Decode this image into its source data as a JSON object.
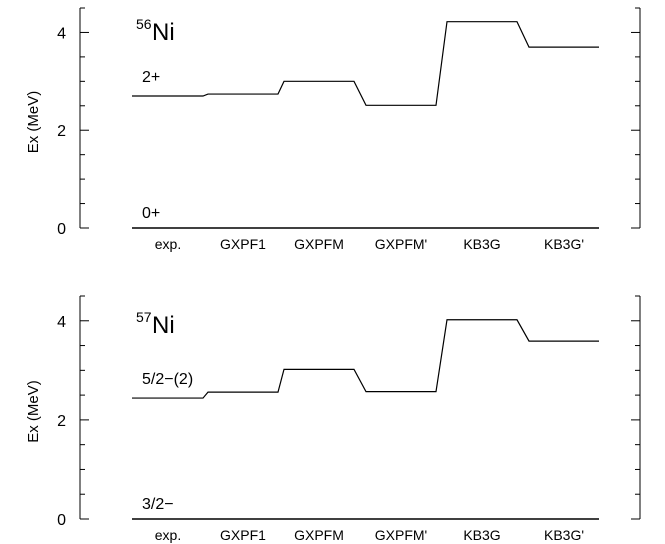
{
  "chart_data": [
    {
      "type": "line",
      "nucleus": {
        "mass": "56",
        "symbol": "Ni"
      },
      "ylabel": "Ex  (MeV)",
      "ylim": [
        0,
        4.5
      ],
      "yticks": [
        0,
        2,
        4
      ],
      "categories": [
        "exp.",
        "GXPF1",
        "GXPFM",
        "GXPFM'",
        "KB3G",
        "KB3G'"
      ],
      "series": [
        {
          "name": "2+",
          "values": [
            2.7,
            2.74,
            3.0,
            2.51,
            4.22,
            3.7
          ]
        },
        {
          "name": "0+",
          "values": [
            0,
            0,
            0,
            0,
            0,
            0
          ]
        }
      ]
    },
    {
      "type": "line",
      "nucleus": {
        "mass": "57",
        "symbol": "Ni"
      },
      "ylabel": "Ex  (MeV)",
      "ylim": [
        0,
        4.5
      ],
      "yticks": [
        0,
        2,
        4
      ],
      "categories": [
        "exp.",
        "GXPF1",
        "GXPFM",
        "GXPFM'",
        "KB3G",
        "KB3G'"
      ],
      "series": [
        {
          "name": "5/2−(2)",
          "values": [
            2.44,
            2.56,
            3.02,
            2.57,
            4.02,
            3.59
          ]
        },
        {
          "name": "3/2−",
          "values": [
            0,
            0,
            0,
            0,
            0,
            0
          ]
        }
      ]
    }
  ]
}
